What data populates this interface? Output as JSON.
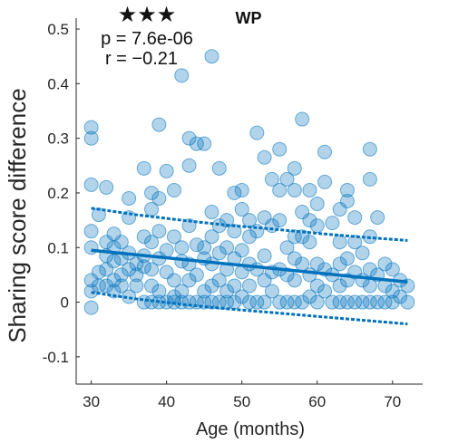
{
  "chart_data": {
    "type": "scatter",
    "title": "WP",
    "significance": "★★★",
    "stat_p": "p = 7.6e-06",
    "stat_r": "r = −0.21",
    "xlabel": "Age (months)",
    "ylabel": "Sharing score difference",
    "xlim": [
      28,
      74
    ],
    "ylim": [
      -0.15,
      0.52
    ],
    "xticks": [
      30,
      40,
      50,
      60,
      70
    ],
    "xtick_labels": [
      "30",
      "40",
      "50",
      "60",
      "70"
    ],
    "yticks": [
      -0.1,
      0,
      0.1,
      0.2,
      0.3,
      0.4,
      0.5
    ],
    "ytick_labels": [
      "-0.1",
      "0",
      "0.1",
      "0.2",
      "0.3",
      "0.4",
      "0.5"
    ],
    "grid": false,
    "colors": {
      "points": "#0072BD",
      "fit": "#0072BD"
    },
    "fit": {
      "x": [
        30,
        72
      ],
      "y": [
        0.095,
        0.037
      ]
    },
    "ci_upper": {
      "x": [
        30,
        36,
        42,
        48,
        54,
        60,
        66,
        72
      ],
      "y": [
        0.172,
        0.16,
        0.15,
        0.141,
        0.134,
        0.126,
        0.119,
        0.113
      ]
    },
    "ci_lower": {
      "x": [
        30,
        36,
        42,
        48,
        54,
        60,
        66,
        72
      ],
      "y": [
        0.018,
        0.006,
        -0.004,
        -0.012,
        -0.019,
        -0.026,
        -0.033,
        -0.04
      ]
    },
    "points": [
      {
        "x": 30,
        "y": 0.32
      },
      {
        "x": 30,
        "y": 0.3
      },
      {
        "x": 30,
        "y": 0.215
      },
      {
        "x": 30,
        "y": 0.13
      },
      {
        "x": 30,
        "y": 0.1
      },
      {
        "x": 30,
        "y": 0.04
      },
      {
        "x": 30,
        "y": 0.02
      },
      {
        "x": 30,
        "y": -0.01
      },
      {
        "x": 31,
        "y": 0.16
      },
      {
        "x": 31,
        "y": 0.055
      },
      {
        "x": 31,
        "y": 0.03
      },
      {
        "x": 32,
        "y": 0.21
      },
      {
        "x": 32,
        "y": 0.11
      },
      {
        "x": 32,
        "y": 0.085
      },
      {
        "x": 32,
        "y": 0.06
      },
      {
        "x": 32,
        "y": 0.03
      },
      {
        "x": 33,
        "y": 0.125
      },
      {
        "x": 33,
        "y": 0.1
      },
      {
        "x": 33,
        "y": 0.075
      },
      {
        "x": 33,
        "y": 0.04
      },
      {
        "x": 33,
        "y": 0.02
      },
      {
        "x": 34,
        "y": 0.11
      },
      {
        "x": 34,
        "y": 0.08
      },
      {
        "x": 34,
        "y": 0.05
      },
      {
        "x": 34,
        "y": 0.03
      },
      {
        "x": 35,
        "y": 0.19
      },
      {
        "x": 35,
        "y": 0.155
      },
      {
        "x": 35,
        "y": 0.09
      },
      {
        "x": 35,
        "y": 0.06
      },
      {
        "x": 35,
        "y": 0.01
      },
      {
        "x": 36,
        "y": 0.07
      },
      {
        "x": 36,
        "y": 0.05
      },
      {
        "x": 36,
        "y": 0.03
      },
      {
        "x": 37,
        "y": 0.245
      },
      {
        "x": 37,
        "y": 0.12
      },
      {
        "x": 37,
        "y": 0.085
      },
      {
        "x": 37,
        "y": 0.065
      },
      {
        "x": 37,
        "y": 0.0
      },
      {
        "x": 38,
        "y": 0.2
      },
      {
        "x": 38,
        "y": 0.17
      },
      {
        "x": 38,
        "y": 0.11
      },
      {
        "x": 38,
        "y": 0.06
      },
      {
        "x": 38,
        "y": 0.03
      },
      {
        "x": 38,
        "y": 0.0
      },
      {
        "x": 39,
        "y": 0.325
      },
      {
        "x": 39,
        "y": 0.19
      },
      {
        "x": 39,
        "y": 0.13
      },
      {
        "x": 39,
        "y": 0.08
      },
      {
        "x": 39,
        "y": 0.02
      },
      {
        "x": 39,
        "y": 0.0
      },
      {
        "x": 40,
        "y": 0.24
      },
      {
        "x": 40,
        "y": 0.095
      },
      {
        "x": 40,
        "y": 0.055
      },
      {
        "x": 40,
        "y": 0.0
      },
      {
        "x": 41,
        "y": 0.205
      },
      {
        "x": 41,
        "y": 0.12
      },
      {
        "x": 41,
        "y": 0.04
      },
      {
        "x": 41,
        "y": 0.01
      },
      {
        "x": 41,
        "y": 0.0
      },
      {
        "x": 42,
        "y": 0.415
      },
      {
        "x": 42,
        "y": 0.1
      },
      {
        "x": 42,
        "y": 0.075
      },
      {
        "x": 42,
        "y": 0.02
      },
      {
        "x": 42,
        "y": 0.0
      },
      {
        "x": 43,
        "y": 0.3
      },
      {
        "x": 43,
        "y": 0.25
      },
      {
        "x": 43,
        "y": 0.14
      },
      {
        "x": 43,
        "y": 0.07
      },
      {
        "x": 43,
        "y": 0.04
      },
      {
        "x": 43,
        "y": 0.0
      },
      {
        "x": 44,
        "y": 0.29
      },
      {
        "x": 44,
        "y": 0.105
      },
      {
        "x": 44,
        "y": 0.05
      },
      {
        "x": 44,
        "y": 0.0
      },
      {
        "x": 45,
        "y": 0.29
      },
      {
        "x": 45,
        "y": 0.1
      },
      {
        "x": 45,
        "y": 0.08
      },
      {
        "x": 45,
        "y": 0.02
      },
      {
        "x": 45,
        "y": 0.0
      },
      {
        "x": 46,
        "y": 0.45
      },
      {
        "x": 46,
        "y": 0.165
      },
      {
        "x": 46,
        "y": 0.12
      },
      {
        "x": 46,
        "y": 0.07
      },
      {
        "x": 46,
        "y": 0.03
      },
      {
        "x": 46,
        "y": 0.0
      },
      {
        "x": 47,
        "y": 0.245
      },
      {
        "x": 47,
        "y": 0.14
      },
      {
        "x": 47,
        "y": 0.09
      },
      {
        "x": 47,
        "y": 0.04
      },
      {
        "x": 47,
        "y": 0.0
      },
      {
        "x": 48,
        "y": 0.15
      },
      {
        "x": 48,
        "y": 0.1
      },
      {
        "x": 48,
        "y": 0.06
      },
      {
        "x": 48,
        "y": 0.02
      },
      {
        "x": 48,
        "y": 0.0
      },
      {
        "x": 49,
        "y": 0.2
      },
      {
        "x": 49,
        "y": 0.13
      },
      {
        "x": 49,
        "y": 0.08
      },
      {
        "x": 49,
        "y": 0.03
      },
      {
        "x": 49,
        "y": 0.0
      },
      {
        "x": 50,
        "y": 0.205
      },
      {
        "x": 50,
        "y": 0.17
      },
      {
        "x": 50,
        "y": 0.095
      },
      {
        "x": 50,
        "y": 0.055
      },
      {
        "x": 50,
        "y": 0.01
      },
      {
        "x": 51,
        "y": 0.15
      },
      {
        "x": 51,
        "y": 0.12
      },
      {
        "x": 51,
        "y": 0.07
      },
      {
        "x": 51,
        "y": 0.03
      },
      {
        "x": 51,
        "y": 0.0
      },
      {
        "x": 52,
        "y": 0.31
      },
      {
        "x": 52,
        "y": 0.13
      },
      {
        "x": 52,
        "y": 0.06
      },
      {
        "x": 52,
        "y": 0.0
      },
      {
        "x": 53,
        "y": 0.265
      },
      {
        "x": 53,
        "y": 0.155
      },
      {
        "x": 53,
        "y": 0.085
      },
      {
        "x": 53,
        "y": 0.04
      },
      {
        "x": 53,
        "y": 0.0
      },
      {
        "x": 54,
        "y": 0.225
      },
      {
        "x": 54,
        "y": 0.14
      },
      {
        "x": 54,
        "y": 0.055
      },
      {
        "x": 54,
        "y": 0.02
      },
      {
        "x": 55,
        "y": 0.28
      },
      {
        "x": 55,
        "y": 0.205
      },
      {
        "x": 55,
        "y": 0.15
      },
      {
        "x": 55,
        "y": 0.06
      },
      {
        "x": 55,
        "y": 0.0
      },
      {
        "x": 56,
        "y": 0.225
      },
      {
        "x": 56,
        "y": 0.1
      },
      {
        "x": 56,
        "y": 0.05
      },
      {
        "x": 56,
        "y": 0.0
      },
      {
        "x": 57,
        "y": 0.245
      },
      {
        "x": 57,
        "y": 0.205
      },
      {
        "x": 57,
        "y": 0.12
      },
      {
        "x": 57,
        "y": 0.08
      },
      {
        "x": 57,
        "y": 0.04
      },
      {
        "x": 57,
        "y": 0.0
      },
      {
        "x": 58,
        "y": 0.335
      },
      {
        "x": 58,
        "y": 0.165
      },
      {
        "x": 58,
        "y": 0.12
      },
      {
        "x": 58,
        "y": 0.07
      },
      {
        "x": 58,
        "y": 0.0
      },
      {
        "x": 59,
        "y": 0.205
      },
      {
        "x": 59,
        "y": 0.15
      },
      {
        "x": 59,
        "y": 0.11
      },
      {
        "x": 59,
        "y": 0.05
      },
      {
        "x": 59,
        "y": 0.01
      },
      {
        "x": 60,
        "y": 0.18
      },
      {
        "x": 60,
        "y": 0.14
      },
      {
        "x": 60,
        "y": 0.07
      },
      {
        "x": 60,
        "y": 0.03
      },
      {
        "x": 60,
        "y": 0.0
      },
      {
        "x": 61,
        "y": 0.275
      },
      {
        "x": 61,
        "y": 0.22
      },
      {
        "x": 61,
        "y": 0.06
      },
      {
        "x": 61,
        "y": 0.02
      },
      {
        "x": 62,
        "y": 0.145
      },
      {
        "x": 62,
        "y": 0.05
      },
      {
        "x": 62,
        "y": 0.0
      },
      {
        "x": 63,
        "y": 0.17
      },
      {
        "x": 63,
        "y": 0.11
      },
      {
        "x": 63,
        "y": 0.07
      },
      {
        "x": 63,
        "y": 0.03
      },
      {
        "x": 63,
        "y": 0.0
      },
      {
        "x": 64,
        "y": 0.205
      },
      {
        "x": 64,
        "y": 0.185
      },
      {
        "x": 64,
        "y": 0.08
      },
      {
        "x": 64,
        "y": 0.04
      },
      {
        "x": 64,
        "y": 0.0
      },
      {
        "x": 65,
        "y": 0.155
      },
      {
        "x": 65,
        "y": 0.11
      },
      {
        "x": 65,
        "y": 0.055
      },
      {
        "x": 65,
        "y": 0.0
      },
      {
        "x": 66,
        "y": 0.09
      },
      {
        "x": 66,
        "y": 0.04
      },
      {
        "x": 66,
        "y": 0.0
      },
      {
        "x": 67,
        "y": 0.28
      },
      {
        "x": 67,
        "y": 0.225
      },
      {
        "x": 67,
        "y": 0.12
      },
      {
        "x": 67,
        "y": 0.06
      },
      {
        "x": 67,
        "y": 0.03
      },
      {
        "x": 67,
        "y": 0.0
      },
      {
        "x": 68,
        "y": 0.155
      },
      {
        "x": 68,
        "y": 0.05
      },
      {
        "x": 68,
        "y": 0.0
      },
      {
        "x": 69,
        "y": 0.07
      },
      {
        "x": 69,
        "y": 0.03
      },
      {
        "x": 69,
        "y": 0.0
      },
      {
        "x": 70,
        "y": 0.06
      },
      {
        "x": 70,
        "y": 0.02
      },
      {
        "x": 70,
        "y": 0.0
      },
      {
        "x": 71,
        "y": 0.04
      },
      {
        "x": 71,
        "y": 0.01
      },
      {
        "x": 72,
        "y": 0.03
      },
      {
        "x": 72,
        "y": 0.0
      }
    ]
  }
}
